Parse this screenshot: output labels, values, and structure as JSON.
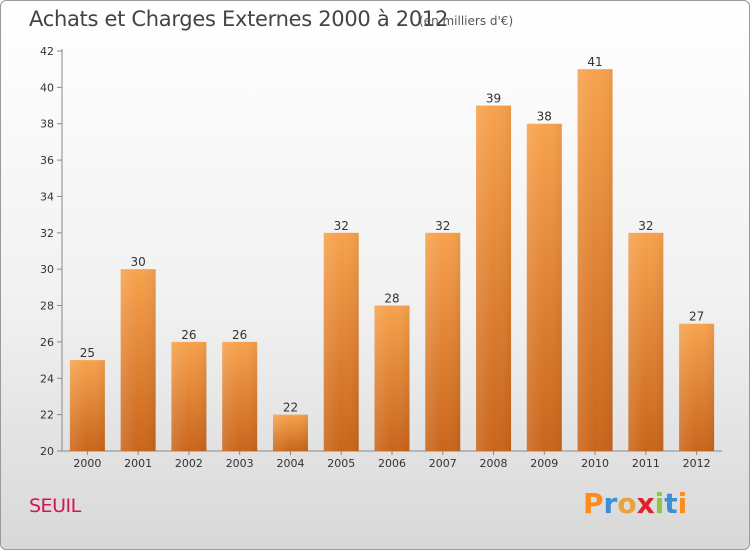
{
  "chart_data": {
    "type": "bar",
    "title": "Achats et Charges Externes 2000 à 2012",
    "subtitle": "(en milliers d'€)",
    "categories": [
      "2000",
      "2001",
      "2002",
      "2003",
      "2004",
      "2005",
      "2006",
      "2007",
      "2008",
      "2009",
      "2010",
      "2011",
      "2012"
    ],
    "values": [
      25,
      30,
      26,
      26,
      22,
      32,
      28,
      32,
      39,
      38,
      41,
      32,
      27
    ],
    "ylim": [
      20,
      42
    ],
    "yticks": [
      20,
      22,
      24,
      26,
      28,
      30,
      32,
      34,
      36,
      38,
      40,
      42
    ],
    "grid": false,
    "bar_color_top": "#f7a24d",
    "bar_color_bottom": "#c9651b"
  },
  "footer": {
    "place": "SEUIL",
    "logo": [
      "P",
      "r",
      "o",
      "x",
      "i",
      "t",
      "i"
    ],
    "logo_colors": [
      "#ff8c1a",
      "#3b8fd4",
      "#e8a33c",
      "#e0202a",
      "#8dc63f",
      "#3b8fd4",
      "#ff8c1a"
    ]
  }
}
